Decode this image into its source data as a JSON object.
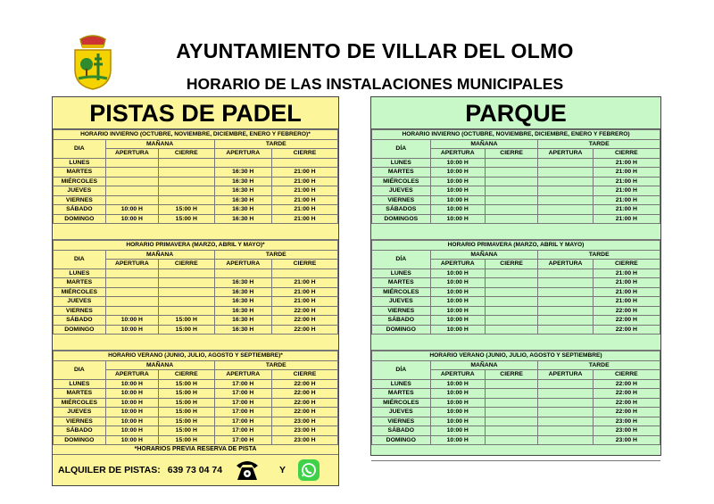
{
  "header": {
    "title": "AYUNTAMIENTO DE VILLAR DEL OLMO",
    "subtitle": "HORARIO DE LAS INSTALACIONES MUNICIPALES"
  },
  "colors": {
    "padel_bg": "#fdf59a",
    "parque_bg": "#c8f7c8"
  },
  "headers": {
    "manana": "MAÑANA",
    "tarde": "TARDE",
    "apertura": "APERTURA",
    "cierre": "CIERRE"
  },
  "padel": {
    "title": "PISTAS DE PADEL",
    "day_label": "DIA",
    "sections": [
      {
        "title": "HORARIO INVIERNO (OCTUBRE, NOVIEMBRE, DICIEMBRE, ENERO Y FEBRERO)*",
        "rows": [
          [
            "LUNES",
            "",
            "",
            "",
            ""
          ],
          [
            "MARTES",
            "",
            "",
            "16:30 H",
            "21:00 H"
          ],
          [
            "MIÉRCOLES",
            "",
            "",
            "16:30 H",
            "21:00 H"
          ],
          [
            "JUEVES",
            "",
            "",
            "16:30 H",
            "21:00 H"
          ],
          [
            "VIERNES",
            "",
            "",
            "16:30 H",
            "21:00 H"
          ],
          [
            "SÁBADO",
            "10:00 H",
            "15:00 H",
            "16:30 H",
            "21:00 H"
          ],
          [
            "DOMINGO",
            "10:00 H",
            "15:00 H",
            "16:30 H",
            "21:00 H"
          ]
        ]
      },
      {
        "title": "HORARIO PRIMAVERA (MARZO, ABRIL Y MAYO)*",
        "rows": [
          [
            "LUNES",
            "",
            "",
            "",
            ""
          ],
          [
            "MARTES",
            "",
            "",
            "16:30 H",
            "21:00 H"
          ],
          [
            "MIÉRCOLES",
            "",
            "",
            "16:30 H",
            "21:00 H"
          ],
          [
            "JUEVES",
            "",
            "",
            "16:30 H",
            "21:00 H"
          ],
          [
            "VIERNES",
            "",
            "",
            "16:30 H",
            "22:00 H"
          ],
          [
            "SÁBADO",
            "10:00 H",
            "15:00 H",
            "16:30 H",
            "22:00 H"
          ],
          [
            "DOMINGO",
            "10:00 H",
            "15:00 H",
            "16:30 H",
            "22:00 H"
          ]
        ]
      },
      {
        "title": "HORARIO VERANO (JUNIO, JULIO, AGOSTO Y SEPTIEMBRE)*",
        "rows": [
          [
            "LUNES",
            "10:00 H",
            "15:00 H",
            "17:00 H",
            "22:00 H"
          ],
          [
            "MARTES",
            "10:00 H",
            "15:00 H",
            "17:00 H",
            "22:00 H"
          ],
          [
            "MIÉRCOLES",
            "10:00 H",
            "15:00 H",
            "17:00 H",
            "22:00 H"
          ],
          [
            "JUEVES",
            "10:00 H",
            "15:00 H",
            "17:00 H",
            "22:00 H"
          ],
          [
            "VIERNES",
            "10:00 H",
            "15:00 H",
            "17:00 H",
            "23:00 H"
          ],
          [
            "SÁBADO",
            "10:00 H",
            "15:00 H",
            "17:00 H",
            "23:00 H"
          ],
          [
            "DOMINGO",
            "10:00 H",
            "15:00 H",
            "17:00 H",
            "23:00 H"
          ]
        ]
      }
    ],
    "note": "*HORARIOS PREVIA RESERVA DE PISTA",
    "footer": {
      "label": "ALQUILER DE PISTAS:",
      "phone": "639 73 04 74",
      "and": "Y",
      "phone_icon": "telephone-icon",
      "whatsapp_icon": "whatsapp-icon"
    }
  },
  "parque": {
    "title": "PARQUE",
    "day_label": "DÍA",
    "sections": [
      {
        "title": "HORARIO INVIERNO (OCTUBRE, NOVIEMBRE, DICIEMBRE, ENERO Y FEBRERO)",
        "rows": [
          [
            "LUNES",
            "10:00 H",
            "",
            "",
            "21:00 H"
          ],
          [
            "MARTES",
            "10:00 H",
            "",
            "",
            "21:00 H"
          ],
          [
            "MIÉRCOLES",
            "10:00 H",
            "",
            "",
            "21:00 H"
          ],
          [
            "JUEVES",
            "10:00 H",
            "",
            "",
            "21:00 H"
          ],
          [
            "VIERNES",
            "10:00 H",
            "",
            "",
            "21:00 H"
          ],
          [
            "SÁBADOS",
            "10:00 H",
            "",
            "",
            "21:00 H"
          ],
          [
            "DOMINGOS",
            "10:00 H",
            "",
            "",
            "21:00 H"
          ]
        ]
      },
      {
        "title": "HORARIO PRIMAVERA (MARZO, ABRIL Y MAYO)",
        "rows": [
          [
            "LUNES",
            "10:00 H",
            "",
            "",
            "21:00 H"
          ],
          [
            "MARTES",
            "10:00 H",
            "",
            "",
            "21:00 H"
          ],
          [
            "MIÉRCOLES",
            "10:00 H",
            "",
            "",
            "21:00 H"
          ],
          [
            "JUEVES",
            "10:00 H",
            "",
            "",
            "21:00 H"
          ],
          [
            "VIERNES",
            "10:00 H",
            "",
            "",
            "22:00 H"
          ],
          [
            "SÁBADO",
            "10:00 H",
            "",
            "",
            "22:00 H"
          ],
          [
            "DOMINGO",
            "10:00 H",
            "",
            "",
            "22:00 H"
          ]
        ]
      },
      {
        "title": "HORARIO VERANO (JUNIO, JULIO, AGOSTO Y SEPTIEMBRE)",
        "rows": [
          [
            "LUNES",
            "10:00 H",
            "",
            "",
            "22:00 H"
          ],
          [
            "MARTES",
            "10:00 H",
            "",
            "",
            "22:00 H"
          ],
          [
            "MIÉRCOLES",
            "10:00 H",
            "",
            "",
            "22:00 H"
          ],
          [
            "JUEVES",
            "10:00 H",
            "",
            "",
            "22:00 H"
          ],
          [
            "VIERNES",
            "10:00 H",
            "",
            "",
            "23:00 H"
          ],
          [
            "SÁBADO",
            "10:00 H",
            "",
            "",
            "23:00 H"
          ],
          [
            "DOMINGO",
            "10:00 H",
            "",
            "",
            "23:00 H"
          ]
        ]
      }
    ]
  }
}
